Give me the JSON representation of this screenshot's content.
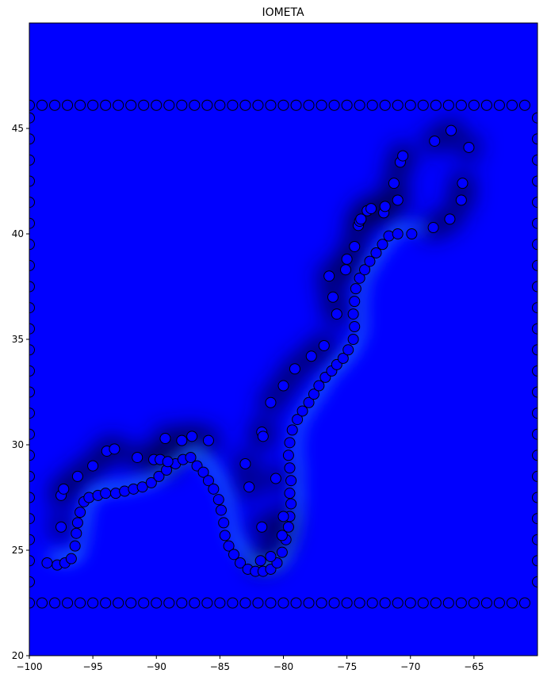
{
  "chart_data": {
    "type": "scatter",
    "title": "IOMETA",
    "xlabel": "",
    "ylabel": "",
    "xlim": [
      -100,
      -60
    ],
    "ylim": [
      20,
      50
    ],
    "x_ticks": [
      -100,
      -95,
      -90,
      -85,
      -80,
      -75,
      -70,
      -65
    ],
    "y_ticks": [
      20,
      25,
      30,
      35,
      40,
      45
    ],
    "grid": false,
    "legend": "none",
    "background": {
      "kind": "heatmap",
      "base_color": "#0000ff",
      "dark_color": "#000033",
      "light_color": "#33ccff"
    },
    "marker": {
      "shape": "circle",
      "face": "#0000ff",
      "edge": "#000000"
    },
    "frame_top_y": 46.1,
    "frame_bottom_y": 22.5,
    "frame_left_x": -100,
    "frame_right_x": -60,
    "coast_outer": [
      [
        -98.6,
        24.4
      ],
      [
        -97.8,
        24.3
      ],
      [
        -97.2,
        24.4
      ],
      [
        -96.7,
        24.6
      ],
      [
        -96.4,
        25.2
      ],
      [
        -96.3,
        25.8
      ],
      [
        -96.2,
        26.3
      ],
      [
        -96.0,
        26.8
      ],
      [
        -95.7,
        27.3
      ],
      [
        -95.3,
        27.5
      ],
      [
        -94.6,
        27.6
      ],
      [
        -94.0,
        27.7
      ],
      [
        -93.2,
        27.7
      ],
      [
        -92.5,
        27.8
      ],
      [
        -91.8,
        27.9
      ],
      [
        -91.1,
        28.0
      ],
      [
        -90.4,
        28.2
      ],
      [
        -89.8,
        28.5
      ],
      [
        -89.2,
        28.8
      ],
      [
        -88.5,
        29.1
      ],
      [
        -87.9,
        29.3
      ],
      [
        -87.3,
        29.4
      ],
      [
        -86.8,
        29.0
      ],
      [
        -86.3,
        28.7
      ],
      [
        -85.9,
        28.3
      ],
      [
        -85.5,
        27.9
      ],
      [
        -85.1,
        27.4
      ],
      [
        -84.9,
        26.9
      ],
      [
        -84.7,
        26.3
      ],
      [
        -84.6,
        25.7
      ],
      [
        -84.3,
        25.2
      ],
      [
        -83.9,
        24.8
      ],
      [
        -83.4,
        24.4
      ],
      [
        -82.8,
        24.1
      ],
      [
        -82.2,
        24.0
      ],
      [
        -81.6,
        24.0
      ],
      [
        -81.0,
        24.1
      ],
      [
        -80.5,
        24.4
      ],
      [
        -80.1,
        24.9
      ],
      [
        -79.8,
        25.5
      ],
      [
        -79.6,
        26.1
      ],
      [
        -79.5,
        26.6
      ],
      [
        -79.4,
        27.2
      ],
      [
        -79.5,
        27.7
      ],
      [
        -79.4,
        28.3
      ],
      [
        -79.5,
        28.9
      ],
      [
        -79.6,
        29.5
      ],
      [
        -79.5,
        30.1
      ],
      [
        -79.3,
        30.7
      ],
      [
        -78.9,
        31.2
      ],
      [
        -78.5,
        31.6
      ],
      [
        -78.0,
        32.0
      ],
      [
        -77.6,
        32.4
      ],
      [
        -77.2,
        32.8
      ],
      [
        -76.7,
        33.2
      ],
      [
        -76.2,
        33.5
      ],
      [
        -75.8,
        33.8
      ],
      [
        -75.3,
        34.1
      ],
      [
        -74.9,
        34.5
      ],
      [
        -74.5,
        35.0
      ],
      [
        -74.4,
        35.6
      ],
      [
        -74.5,
        36.2
      ],
      [
        -74.4,
        36.8
      ],
      [
        -74.3,
        37.4
      ],
      [
        -74.0,
        37.9
      ],
      [
        -73.6,
        38.3
      ],
      [
        -73.2,
        38.7
      ],
      [
        -72.7,
        39.1
      ],
      [
        -72.2,
        39.5
      ],
      [
        -71.7,
        39.9
      ],
      [
        -71.0,
        40.0
      ],
      [
        -69.9,
        40.0
      ]
    ],
    "coast_inner": [
      [
        -97.5,
        26.1
      ],
      [
        -97.5,
        27.6
      ],
      [
        -97.3,
        27.9
      ],
      [
        -96.2,
        28.5
      ],
      [
        -95.0,
        29.0
      ],
      [
        -93.9,
        29.7
      ],
      [
        -93.3,
        29.8
      ],
      [
        -91.5,
        29.4
      ],
      [
        -90.2,
        29.3
      ],
      [
        -89.7,
        29.3
      ],
      [
        -89.1,
        29.2
      ],
      [
        -89.3,
        30.3
      ],
      [
        -88.0,
        30.2
      ],
      [
        -87.2,
        30.4
      ],
      [
        -85.9,
        30.2
      ],
      [
        -83.0,
        29.1
      ],
      [
        -82.7,
        28.0
      ],
      [
        -81.7,
        30.6
      ],
      [
        -81.6,
        30.4
      ],
      [
        -81.0,
        32.0
      ],
      [
        -80.6,
        28.4
      ],
      [
        -80.0,
        26.6
      ],
      [
        -80.1,
        25.7
      ],
      [
        -81.7,
        26.1
      ],
      [
        -81.8,
        24.5
      ],
      [
        -81.0,
        24.7
      ],
      [
        -80.0,
        32.8
      ],
      [
        -79.1,
        33.6
      ],
      [
        -77.8,
        34.2
      ],
      [
        -76.8,
        34.7
      ],
      [
        -76.4,
        38.0
      ],
      [
        -76.1,
        37.0
      ],
      [
        -75.8,
        36.2
      ],
      [
        -75.1,
        38.3
      ],
      [
        -75.0,
        38.8
      ],
      [
        -74.4,
        39.4
      ],
      [
        -74.1,
        40.4
      ],
      [
        -74.0,
        40.6
      ],
      [
        -73.9,
        40.7
      ],
      [
        -73.4,
        41.1
      ],
      [
        -73.1,
        41.2
      ],
      [
        -72.1,
        41.0
      ],
      [
        -72.0,
        41.3
      ],
      [
        -71.0,
        41.6
      ],
      [
        -71.3,
        42.4
      ],
      [
        -70.8,
        43.4
      ],
      [
        -70.6,
        43.7
      ],
      [
        -68.1,
        44.4
      ],
      [
        -66.8,
        44.9
      ],
      [
        -65.4,
        44.1
      ],
      [
        -65.9,
        42.4
      ],
      [
        -66.0,
        41.6
      ],
      [
        -66.9,
        40.7
      ],
      [
        -68.2,
        40.3
      ]
    ]
  }
}
